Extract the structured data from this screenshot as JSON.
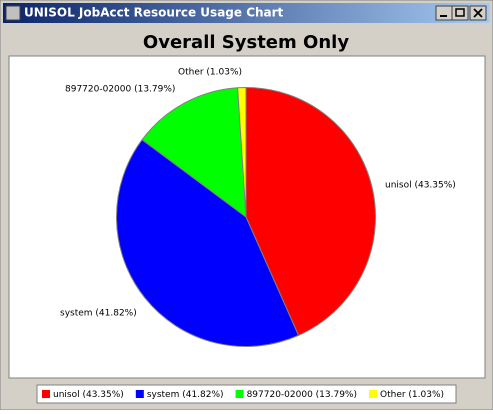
{
  "window_title": "UNISOL JobAcct Resource Usage Chart",
  "chart_data": {
    "type": "pie",
    "title": "Overall System Only",
    "categories": [
      "unisol",
      "system",
      "897720-02000",
      "Other"
    ],
    "values": [
      43.35,
      41.82,
      13.79,
      1.03
    ],
    "value_labels": [
      "unisol (43.35%)",
      "system (41.82%)",
      "897720-02000 (13.79%)",
      "Other (1.03%)"
    ],
    "colors": [
      "#ff0000",
      "#0000ff",
      "#00ff00",
      "#ffff00"
    ],
    "legend": "bottom"
  }
}
